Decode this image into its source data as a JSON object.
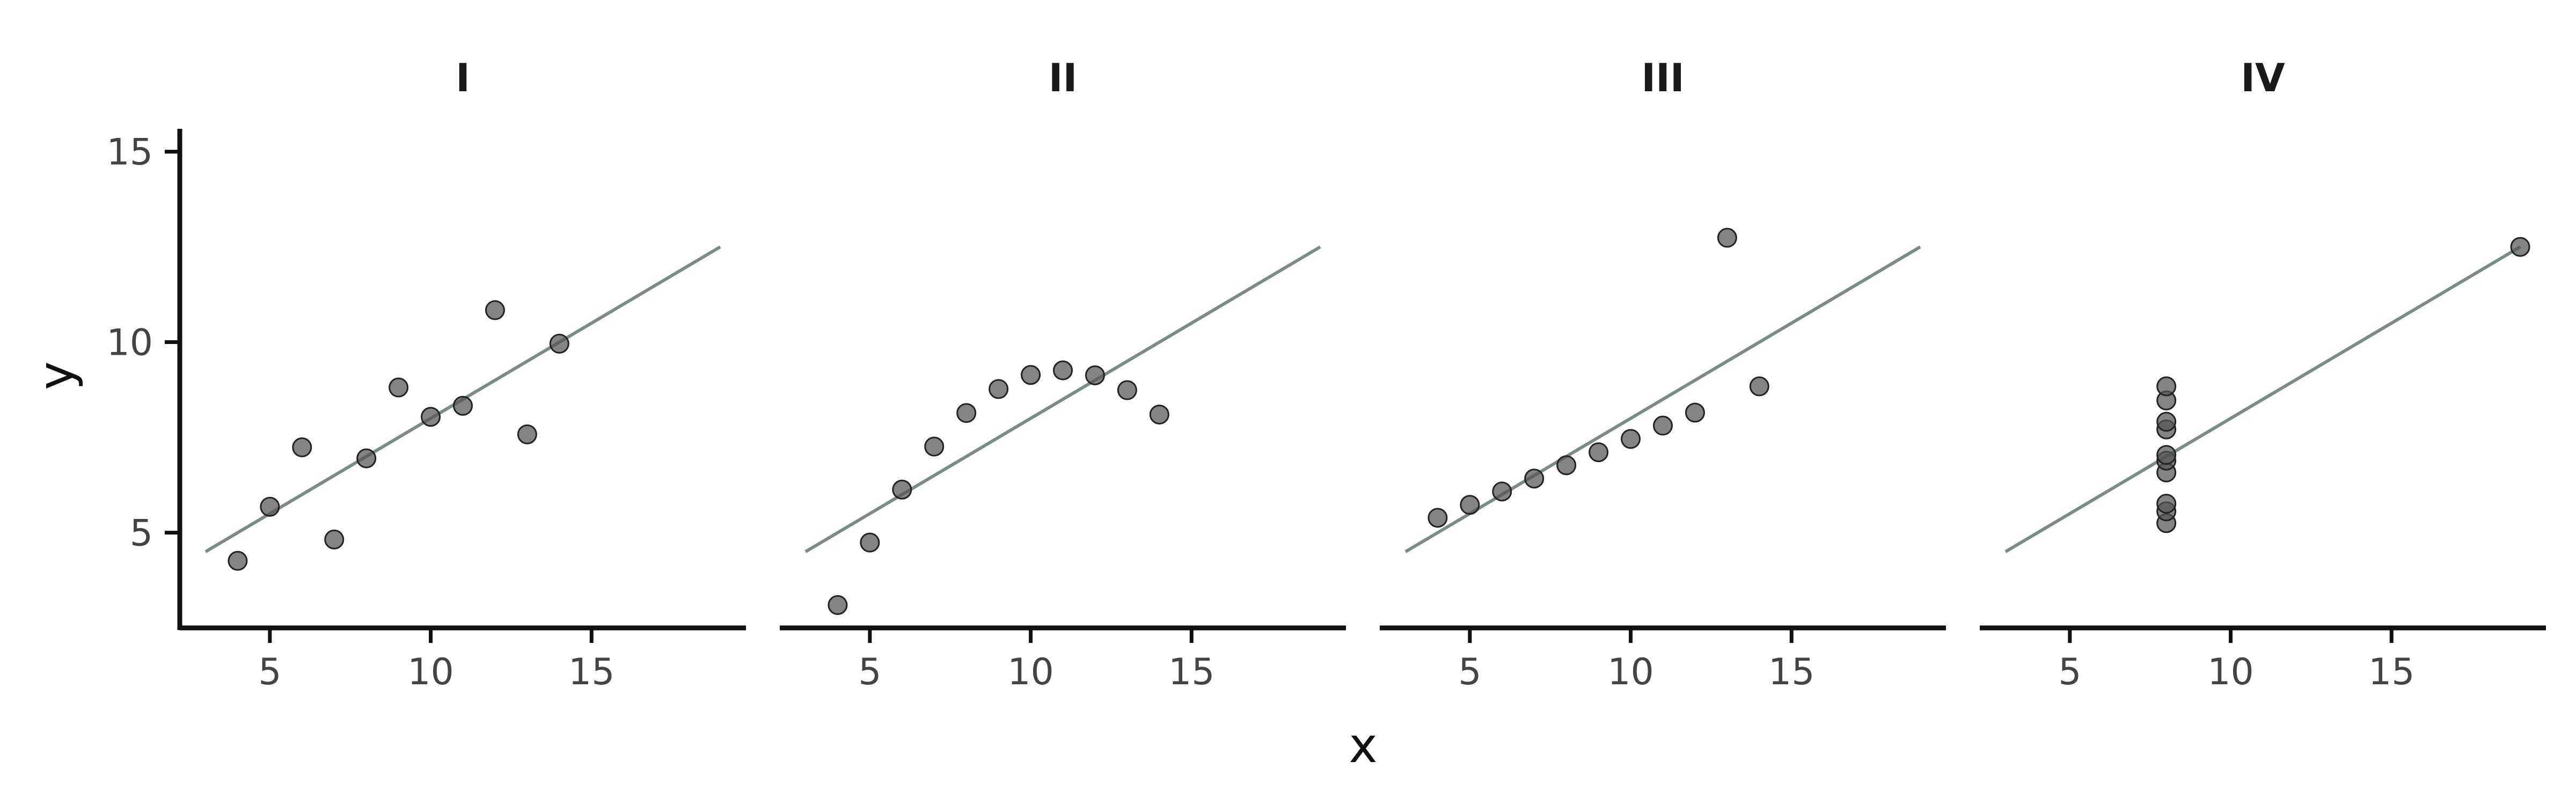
{
  "chart_data": {
    "type": "scatter",
    "xlabel": "x",
    "ylabel": "y",
    "xlim": [
      2.2,
      19.8
    ],
    "ylim": [
      2.5,
      15.6
    ],
    "x_ticks": [
      5,
      10,
      15
    ],
    "y_ticks": [
      5,
      10,
      15
    ],
    "fit_line": {
      "x": [
        3,
        19
      ],
      "y": [
        4.5,
        12.5
      ]
    },
    "colors": {
      "points": "#555555",
      "line": "#7a8c8a",
      "axis": "#111111"
    },
    "panels": [
      {
        "title": "I",
        "points": [
          [
            4,
            4.26
          ],
          [
            5,
            5.68
          ],
          [
            6,
            7.24
          ],
          [
            7,
            4.82
          ],
          [
            8,
            6.95
          ],
          [
            9,
            8.81
          ],
          [
            10,
            8.04
          ],
          [
            11,
            8.33
          ],
          [
            12,
            10.84
          ],
          [
            13,
            7.58
          ],
          [
            14,
            9.96
          ]
        ]
      },
      {
        "title": "II",
        "points": [
          [
            4,
            3.1
          ],
          [
            5,
            4.74
          ],
          [
            6,
            6.13
          ],
          [
            7,
            7.26
          ],
          [
            8,
            8.14
          ],
          [
            9,
            8.77
          ],
          [
            10,
            9.14
          ],
          [
            11,
            9.26
          ],
          [
            12,
            9.13
          ],
          [
            13,
            8.74
          ],
          [
            14,
            8.1
          ]
        ]
      },
      {
        "title": "III",
        "points": [
          [
            4,
            5.39
          ],
          [
            5,
            5.73
          ],
          [
            6,
            6.08
          ],
          [
            7,
            6.42
          ],
          [
            8,
            6.77
          ],
          [
            9,
            7.11
          ],
          [
            10,
            7.46
          ],
          [
            11,
            7.81
          ],
          [
            12,
            8.15
          ],
          [
            13,
            12.74
          ],
          [
            14,
            8.84
          ]
        ]
      },
      {
        "title": "IV",
        "points": [
          [
            8,
            5.25
          ],
          [
            8,
            5.56
          ],
          [
            8,
            5.76
          ],
          [
            8,
            6.58
          ],
          [
            8,
            6.89
          ],
          [
            8,
            7.04
          ],
          [
            8,
            7.71
          ],
          [
            8,
            7.91
          ],
          [
            8,
            8.47
          ],
          [
            8,
            8.84
          ],
          [
            19,
            12.5
          ]
        ]
      }
    ]
  }
}
